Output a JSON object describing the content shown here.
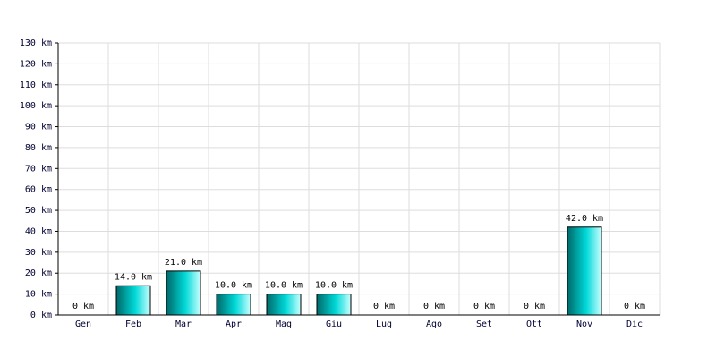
{
  "chart_data": {
    "type": "bar",
    "categories": [
      "Gen",
      "Feb",
      "Mar",
      "Apr",
      "Mag",
      "Giu",
      "Lug",
      "Ago",
      "Set",
      "Ott",
      "Nov",
      "Dic"
    ],
    "values": [
      0,
      14,
      21,
      10,
      10,
      10,
      0,
      0,
      0,
      0,
      42,
      0
    ],
    "value_labels": [
      "0 km",
      "14.0 km",
      "21.0 km",
      "10.0 km",
      "10.0 km",
      "10.0 km",
      "0 km",
      "0 km",
      "0 km",
      "0 km",
      "42.0 km",
      "0 km"
    ],
    "color": "#00d8d8",
    "ylim": [
      0,
      130
    ],
    "yticks": [
      {
        "value": 0,
        "label": "0 km"
      },
      {
        "value": 10,
        "label": "10 km"
      },
      {
        "value": 20,
        "label": "20 km"
      },
      {
        "value": 30,
        "label": "30 km"
      },
      {
        "value": 40,
        "label": "40 km"
      },
      {
        "value": 50,
        "label": "50 km"
      },
      {
        "value": 60,
        "label": "60 km"
      },
      {
        "value": 70,
        "label": "70 km"
      },
      {
        "value": 80,
        "label": "80 km"
      },
      {
        "value": 90,
        "label": "90 km"
      },
      {
        "value": 100,
        "label": "100 km"
      },
      {
        "value": 110,
        "label": "110 km"
      },
      {
        "value": 120,
        "label": "120 km"
      },
      {
        "value": 130,
        "label": "130 km"
      }
    ],
    "grid": true
  }
}
